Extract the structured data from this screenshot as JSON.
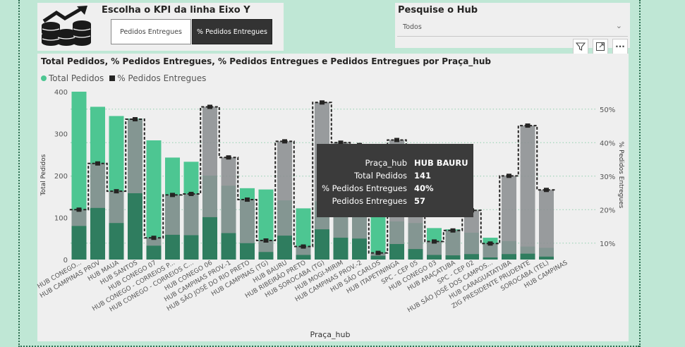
{
  "kpi_selector": {
    "title": "Escolha o KPI da linha Eixo Y",
    "options": [
      "Pedidos Entregues",
      "% Pedidos Entregues"
    ],
    "selected": "% Pedidos Entregues"
  },
  "hub_filter": {
    "title": "Pesquise o Hub",
    "value": "Todos"
  },
  "visual_header": {
    "icons": [
      "filter-icon",
      "focus-mode-icon",
      "more-options-icon"
    ],
    "more_label": "···"
  },
  "tooltip": {
    "rows": [
      {
        "label": "Praça_hub",
        "value": "HUB BAURU"
      },
      {
        "label": "Total Pedidos",
        "value": "141"
      },
      {
        "label": "% Pedidos Entregues",
        "value": "40%"
      },
      {
        "label": "Pedidos Entregues",
        "value": "57"
      }
    ]
  },
  "colors": {
    "total": "#4dc692",
    "delivered": "#2f7d5f",
    "pct": "#8c8f92",
    "marker": "#252423"
  },
  "chart_data": {
    "type": "bar",
    "title": "Total Pedidos, % Pedidos Entregues, % Pedidos Entregues e Pedidos Entregues por Praça_hub",
    "legend": [
      "Total Pedidos",
      "% Pedidos Entregues"
    ],
    "legend_position": "top-left",
    "xlabel": "Praça_hub",
    "ylabel": "Total Pedidos",
    "y2label": "% Pedidos Entregues",
    "ylim": [
      0,
      400
    ],
    "y2lim": [
      5,
      55
    ],
    "yticks": [
      0,
      100,
      200,
      300,
      400
    ],
    "y2ticks": [
      "10%",
      "20%",
      "30%",
      "40%",
      "50%"
    ],
    "categories": [
      "HUB CONEGO...",
      "HUB CAMPINAS PROV",
      "HUB MAUA",
      "HUB SANTOS",
      "HUB CONEGO 07",
      "HUB CONEGO - CORREIOS P...",
      "HUB CONEGO - CORREIOS C...",
      "HUB CONEGO 06",
      "HUB CAMPINAS PROV.-1",
      "HUB SÃO JOSÉ DO RIO PRETO",
      "HUB CAMPINAS (TG)",
      "HUB BAURU",
      "HUB RIBEIRÃO PRETO",
      "HUB SOROCABA (TG)",
      "HUB MOGI-MIRIM",
      "HUB CAMPINAS PROV.-2",
      "HUB SÃO CARLOS",
      "HUB ITAPETININGA",
      "SPC - CEP 05",
      "HUB CONEGO 03",
      "HUB ARAÇATUBA",
      "SPC - CEP 02",
      "HUB SÃO JOSÉ DOS CAMPOS...",
      "HUB CARAGUATATUBA",
      "ZIG PRESIDENTE PRUDENTE",
      "SOROCABA (TEL)",
      "HUB CAMPINAS"
    ],
    "series": [
      {
        "name": "Total Pedidos",
        "values": [
          400,
          364,
          342,
          336,
          284,
          243,
          233,
          200,
          176,
          170,
          167,
          141,
          122,
          139,
          131,
          128,
          123,
          91,
          87,
          75,
          72,
          64,
          52,
          44,
          31,
          28,
          0
        ]
      },
      {
        "name": "Pedidos Entregues",
        "values": [
          80,
          123,
          87,
          158,
          33,
          59,
          58,
          101,
          63,
          39,
          18,
          57,
          11,
          72,
          52,
          50,
          9,
          37,
          25,
          11,
          10,
          13,
          5,
          13,
          14,
          7,
          0
        ]
      },
      {
        "name": "% Pedidos Entregues",
        "values": [
          20.0,
          33.8,
          25.5,
          47.0,
          11.6,
          24.4,
          24.7,
          50.7,
          35.6,
          23.0,
          10.8,
          40.4,
          9.0,
          52.0,
          40.0,
          39.3,
          7.1,
          40.8,
          28.7,
          10.5,
          13.8,
          19.8,
          9.9,
          30.1,
          45.1,
          25.9,
          0
        ]
      }
    ]
  }
}
